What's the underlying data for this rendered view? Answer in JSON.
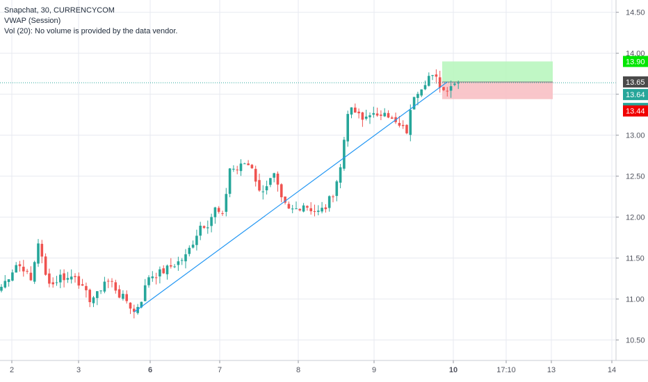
{
  "legend": {
    "line1": "Snapchat, 30, CURRENCYCOM",
    "line2": "VWAP (Session)",
    "line3": "Vol (20): No volume is provided by the data vendor."
  },
  "colors": {
    "up": "#26a69a",
    "down": "#ef5350",
    "trendline": "#2196f3",
    "grid": "#e7eaf0",
    "profit_zone": "#b9f6bf",
    "loss_zone": "#f8c0c4",
    "badge_target": "#00e600",
    "badge_entry": "#4a4a4a",
    "badge_current": "#26a69a",
    "badge_stop": "#f00000"
  },
  "chart_data": {
    "type": "candlestick",
    "ylim": [
      10.25,
      14.65
    ],
    "y_ticks": [
      "10.50",
      "11.00",
      "11.50",
      "12.00",
      "12.50",
      "13.00",
      "13.50",
      "14.00",
      "14.50"
    ],
    "x_ticks": [
      "2",
      "3",
      "6",
      "7",
      "8",
      "9",
      "10",
      "17:10",
      "13",
      "14"
    ],
    "x_ticks_bold": [
      "6",
      "10"
    ],
    "price_labels": [
      {
        "label": "13.90",
        "value": 13.9,
        "role": "target"
      },
      {
        "label": "13.65",
        "value": 13.65,
        "role": "entry"
      },
      {
        "label": "13.64",
        "value": 13.64,
        "role": "current"
      },
      {
        "label": "05:35",
        "value": 13.44,
        "role": "countdown"
      },
      {
        "label": "13.44",
        "value": 13.44,
        "role": "stop"
      }
    ],
    "position": {
      "entry": 13.65,
      "target": 13.9,
      "stop": 13.44,
      "start_index": 120,
      "end_index": 150
    },
    "trendline": {
      "from": {
        "index": 36,
        "price": 10.84
      },
      "to": {
        "index": 121,
        "price": 13.65
      }
    },
    "anchors": [
      [
        0,
        11.15
      ],
      [
        2,
        11.28
      ],
      [
        4,
        11.42
      ],
      [
        6,
        11.38
      ],
      [
        8,
        11.22
      ],
      [
        10,
        11.7
      ],
      [
        12,
        11.28
      ],
      [
        14,
        11.18
      ],
      [
        16,
        11.28
      ],
      [
        18,
        11.25
      ],
      [
        20,
        11.3
      ],
      [
        22,
        11.12
      ],
      [
        24,
        11.0
      ],
      [
        26,
        11.05
      ],
      [
        28,
        11.22
      ],
      [
        30,
        11.2
      ],
      [
        32,
        11.05
      ],
      [
        34,
        10.98
      ],
      [
        36,
        10.84
      ],
      [
        38,
        11.0
      ],
      [
        40,
        11.28
      ],
      [
        42,
        11.3
      ],
      [
        44,
        11.34
      ],
      [
        46,
        11.4
      ],
      [
        48,
        11.45
      ],
      [
        50,
        11.52
      ],
      [
        52,
        11.7
      ],
      [
        54,
        11.9
      ],
      [
        56,
        11.92
      ],
      [
        58,
        12.1
      ],
      [
        60,
        12.0
      ],
      [
        62,
        12.6
      ],
      [
        64,
        12.58
      ],
      [
        66,
        12.66
      ],
      [
        68,
        12.62
      ],
      [
        70,
        12.3
      ],
      [
        72,
        12.4
      ],
      [
        74,
        12.5
      ],
      [
        76,
        12.2
      ],
      [
        78,
        12.08
      ],
      [
        80,
        12.1
      ],
      [
        82,
        12.16
      ],
      [
        84,
        12.1
      ],
      [
        86,
        12.06
      ],
      [
        88,
        12.12
      ],
      [
        90,
        12.3
      ],
      [
        92,
        12.6
      ],
      [
        93,
        12.95
      ],
      [
        94,
        13.3
      ],
      [
        96,
        13.28
      ],
      [
        98,
        13.18
      ],
      [
        100,
        13.28
      ],
      [
        102,
        13.2
      ],
      [
        104,
        13.32
      ],
      [
        106,
        13.18
      ],
      [
        108,
        13.1
      ],
      [
        110,
        13.05
      ],
      [
        112,
        13.5
      ],
      [
        114,
        13.6
      ],
      [
        116,
        13.72
      ],
      [
        118,
        13.68
      ],
      [
        120,
        13.55
      ],
      [
        122,
        13.62
      ],
      [
        124,
        13.64
      ]
    ]
  }
}
